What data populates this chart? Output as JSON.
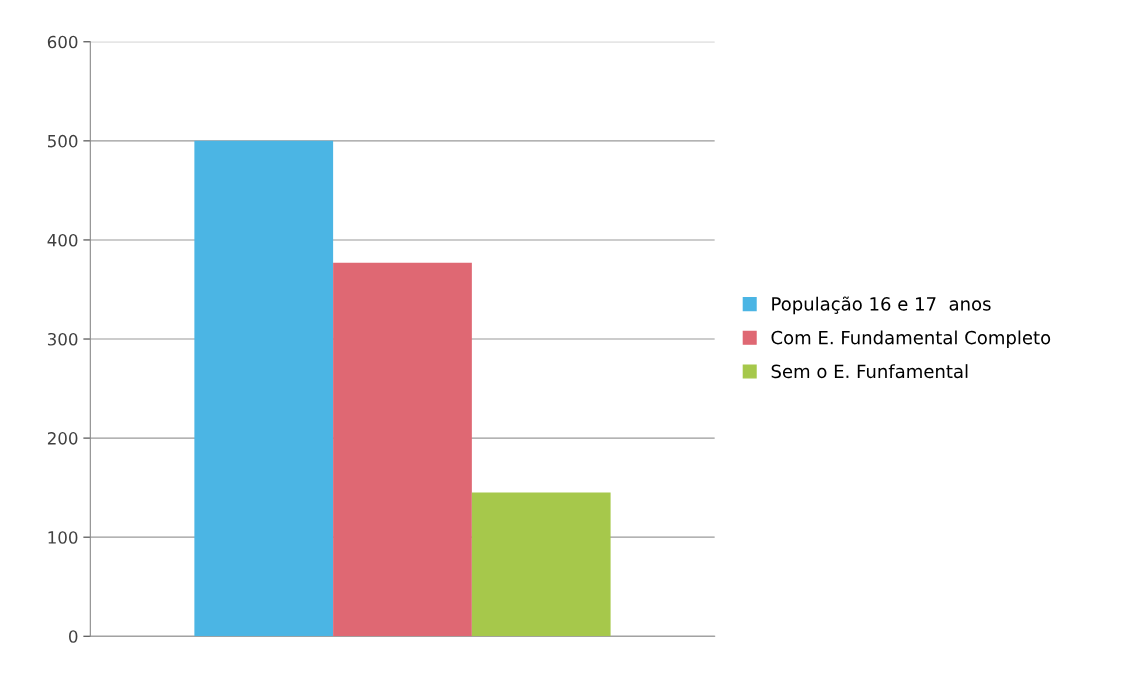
{
  "chart_data": {
    "type": "bar",
    "categories": [
      null
    ],
    "series": [
      {
        "name": "População 16 e 17  anos",
        "color": "#4bb5e4",
        "values": [
          500
        ]
      },
      {
        "name": "Com E. Fundamental Completo",
        "color": "#df6873",
        "values": [
          377
        ]
      },
      {
        "name": "Sem o E. Funfamental",
        "color": "#a6c84b",
        "values": [
          145
        ]
      }
    ],
    "ylim": [
      0,
      600
    ],
    "yticks": [
      0,
      100,
      200,
      300,
      400,
      500,
      600
    ],
    "grid": "y",
    "legend": "right"
  }
}
